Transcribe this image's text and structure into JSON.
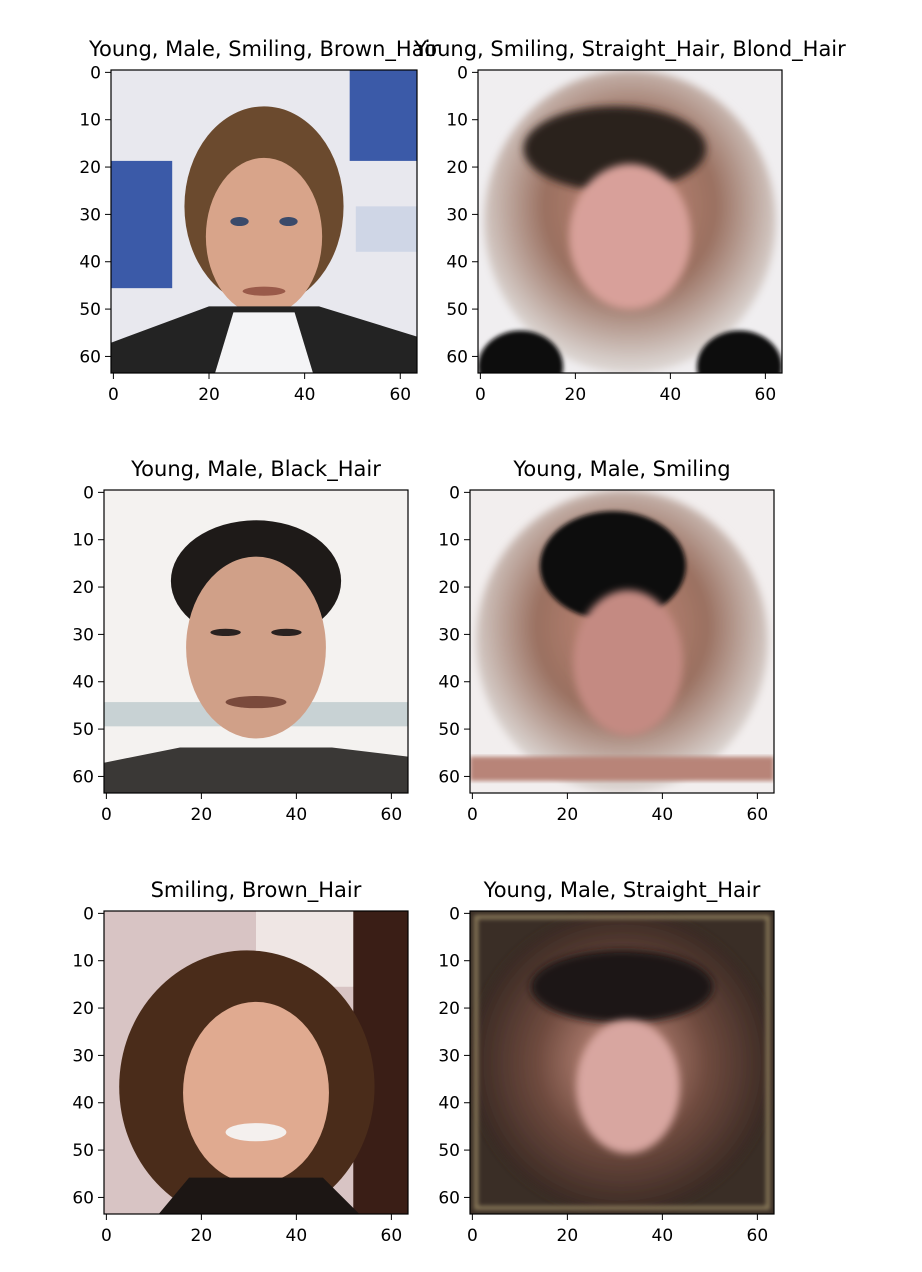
{
  "chart_data": [
    {
      "type": "image",
      "panel": "top-left",
      "title": "Young, Male, Smiling, Brown_Hair",
      "image_content": "photo",
      "xlim": [
        0,
        63
      ],
      "ylim": [
        63,
        0
      ],
      "xticks": [
        0,
        20,
        40,
        60
      ],
      "yticks": [
        0,
        10,
        20,
        30,
        40,
        50,
        60
      ]
    },
    {
      "type": "image",
      "panel": "top-right",
      "title": "Young, Smiling, Straight_Hair, Blond_Hair",
      "image_content": "generated",
      "xlim": [
        0,
        63
      ],
      "ylim": [
        63,
        0
      ],
      "xticks": [
        0,
        20,
        40,
        60
      ],
      "yticks": [
        0,
        10,
        20,
        30,
        40,
        50,
        60
      ]
    },
    {
      "type": "image",
      "panel": "middle-left",
      "title": "Young, Male, Black_Hair",
      "image_content": "photo",
      "xlim": [
        0,
        63
      ],
      "ylim": [
        63,
        0
      ],
      "xticks": [
        0,
        20,
        40,
        60
      ],
      "yticks": [
        0,
        10,
        20,
        30,
        40,
        50,
        60
      ]
    },
    {
      "type": "image",
      "panel": "middle-right",
      "title": "Young, Male, Smiling",
      "image_content": "generated",
      "xlim": [
        0,
        63
      ],
      "ylim": [
        63,
        0
      ],
      "xticks": [
        0,
        20,
        40,
        60
      ],
      "yticks": [
        0,
        10,
        20,
        30,
        40,
        50,
        60
      ]
    },
    {
      "type": "image",
      "panel": "bottom-left",
      "title": "Smiling, Brown_Hair",
      "image_content": "photo",
      "xlim": [
        0,
        63
      ],
      "ylim": [
        63,
        0
      ],
      "xticks": [
        0,
        20,
        40,
        60
      ],
      "yticks": [
        0,
        10,
        20,
        30,
        40,
        50,
        60
      ]
    },
    {
      "type": "image",
      "panel": "bottom-right",
      "title": "Young, Male, Straight_Hair",
      "image_content": "generated",
      "xlim": [
        0,
        63
      ],
      "ylim": [
        63,
        0
      ],
      "xticks": [
        0,
        20,
        40,
        60
      ],
      "yticks": [
        0,
        10,
        20,
        30,
        40,
        50,
        60
      ]
    }
  ]
}
